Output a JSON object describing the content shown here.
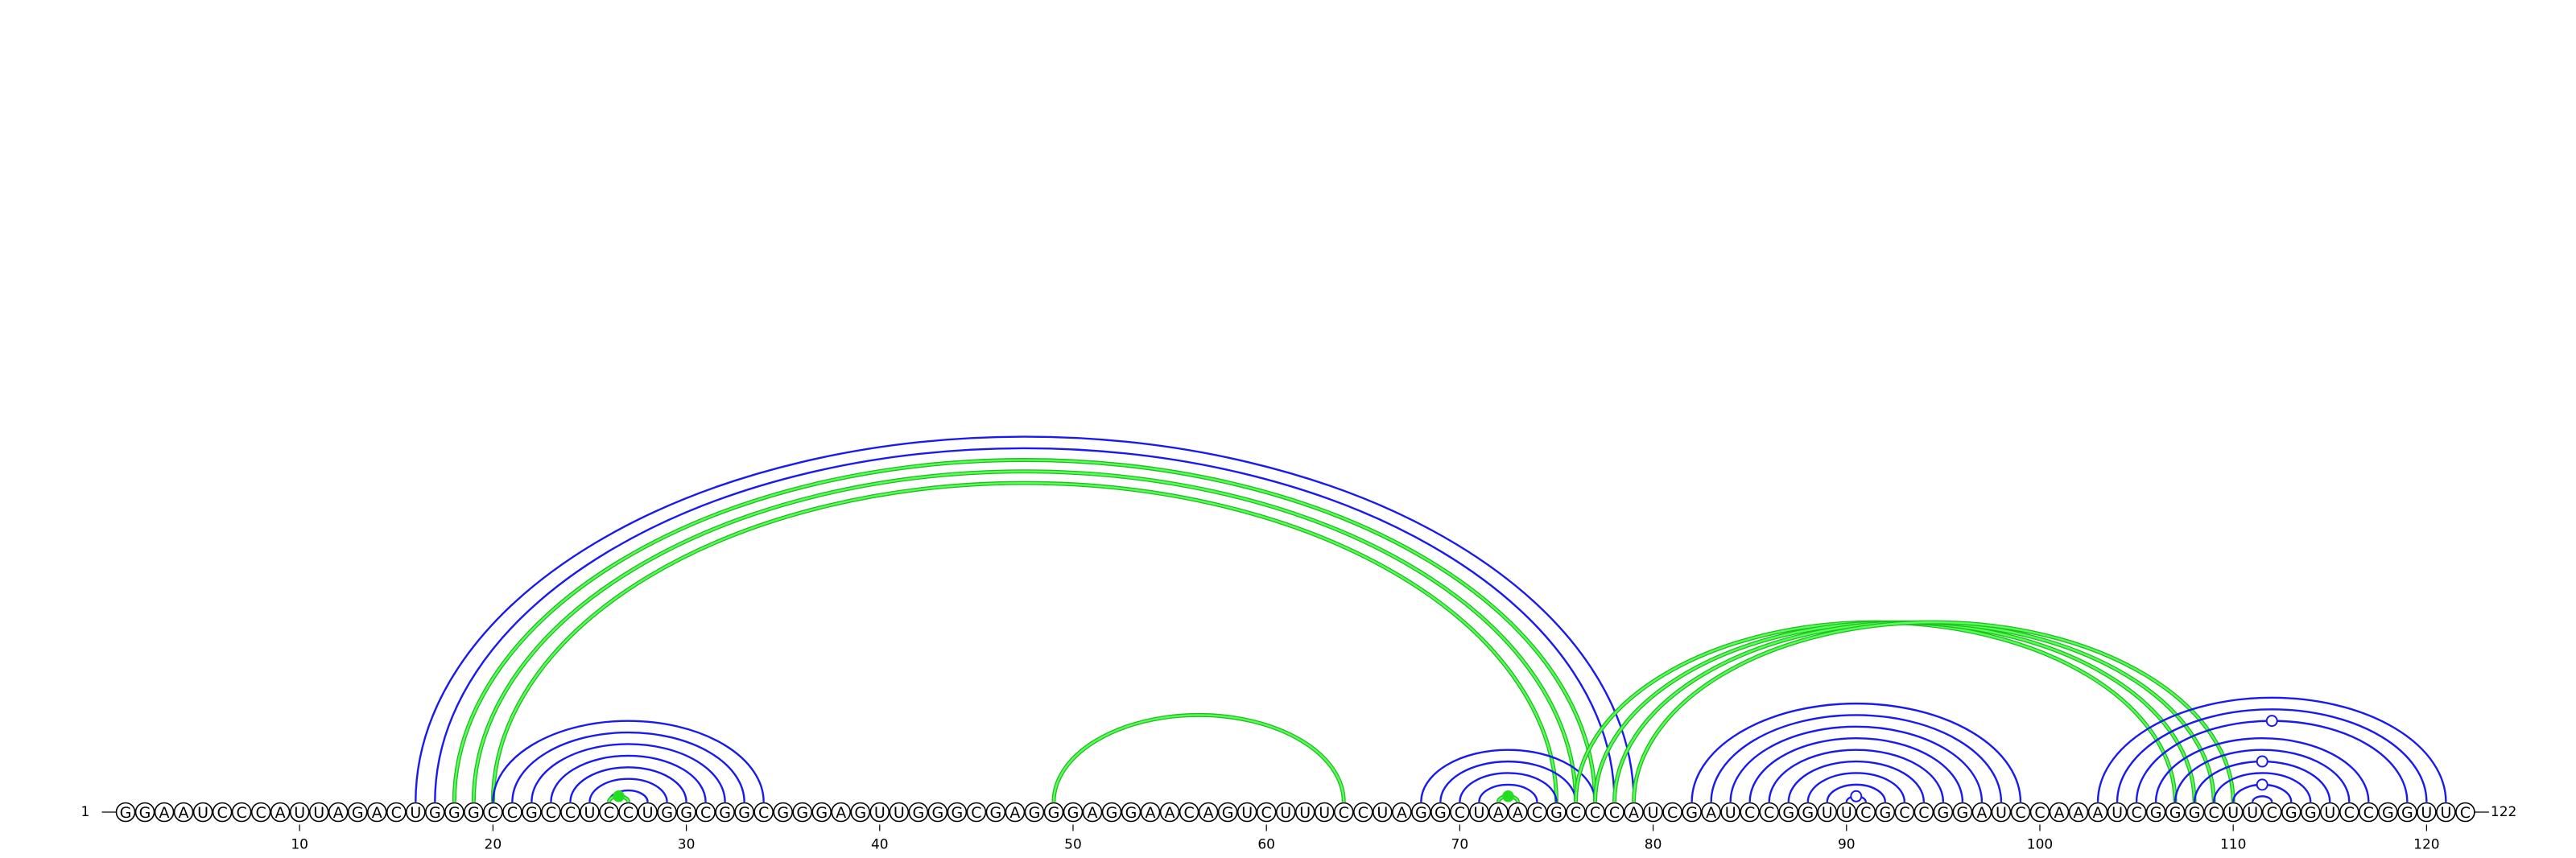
{
  "chart_data": {
    "type": "arc-diagram",
    "sequence": "GGAAUCCCAUUAGACUGGGCCGCCUCCUGGCGGCGGGAGUUGGGCGAGGGAGGAACAGUCUUUCCUAGGCUAACGCCCAUCGAUCCGGUUCGCCGGAUCCAAAUCGGGCUUCGGUCCGGUUC",
    "length": 122,
    "start_label": "1",
    "end_label": "122",
    "tick_labels": [
      "10",
      "20",
      "30",
      "40",
      "50",
      "60",
      "70",
      "80",
      "90",
      "100",
      "110",
      "120"
    ],
    "colors": {
      "blue": "#1a1aee",
      "green": "#44ee44",
      "node_fill": "#ffffff",
      "node_stroke": "#000000"
    },
    "arcs": [
      {
        "i": 16,
        "j": 79,
        "color": "blue"
      },
      {
        "i": 17,
        "j": 78,
        "color": "blue"
      },
      {
        "i": 18,
        "j": 77,
        "color": "green"
      },
      {
        "i": 19,
        "j": 76,
        "color": "green"
      },
      {
        "i": 20,
        "j": 75,
        "color": "green"
      },
      {
        "i": 20,
        "j": 34,
        "color": "blue"
      },
      {
        "i": 21,
        "j": 33,
        "color": "blue"
      },
      {
        "i": 22,
        "j": 32,
        "color": "blue"
      },
      {
        "i": 23,
        "j": 31,
        "color": "blue"
      },
      {
        "i": 24,
        "j": 30,
        "color": "blue"
      },
      {
        "i": 25,
        "j": 29,
        "color": "blue"
      },
      {
        "i": 26,
        "j": 28,
        "color": "blue"
      },
      {
        "i": 26,
        "j": 27,
        "color": "green",
        "dot": true,
        "dot_filled": true
      },
      {
        "i": 49,
        "j": 64,
        "color": "green"
      },
      {
        "i": 68,
        "j": 77,
        "color": "blue"
      },
      {
        "i": 69,
        "j": 76,
        "color": "blue"
      },
      {
        "i": 70,
        "j": 75,
        "color": "blue"
      },
      {
        "i": 71,
        "j": 74,
        "color": "blue"
      },
      {
        "i": 72,
        "j": 73,
        "color": "green",
        "dot": true,
        "dot_filled": true
      },
      {
        "i": 76,
        "j": 107,
        "color": "green"
      },
      {
        "i": 77,
        "j": 108,
        "color": "green"
      },
      {
        "i": 78,
        "j": 109,
        "color": "green"
      },
      {
        "i": 79,
        "j": 110,
        "color": "green"
      },
      {
        "i": 82,
        "j": 99,
        "color": "blue"
      },
      {
        "i": 83,
        "j": 98,
        "color": "blue"
      },
      {
        "i": 84,
        "j": 97,
        "color": "blue"
      },
      {
        "i": 85,
        "j": 96,
        "color": "blue"
      },
      {
        "i": 86,
        "j": 95,
        "color": "blue"
      },
      {
        "i": 87,
        "j": 94,
        "color": "blue"
      },
      {
        "i": 88,
        "j": 93,
        "color": "blue"
      },
      {
        "i": 89,
        "j": 92,
        "color": "blue"
      },
      {
        "i": 90,
        "j": 91,
        "color": "blue",
        "dot": true,
        "dot_filled": false
      },
      {
        "i": 103,
        "j": 121,
        "color": "blue"
      },
      {
        "i": 104,
        "j": 120,
        "color": "blue"
      },
      {
        "i": 105,
        "j": 119,
        "color": "blue",
        "dot": true,
        "dot_filled": false
      },
      {
        "i": 106,
        "j": 117,
        "color": "blue"
      },
      {
        "i": 107,
        "j": 116,
        "color": "blue"
      },
      {
        "i": 108,
        "j": 115,
        "color": "blue",
        "dot": true,
        "dot_filled": false
      },
      {
        "i": 109,
        "j": 114,
        "color": "blue"
      },
      {
        "i": 110,
        "j": 113,
        "color": "blue",
        "dot": true,
        "dot_filled": false
      },
      {
        "i": 111,
        "j": 112,
        "color": "blue"
      }
    ]
  }
}
